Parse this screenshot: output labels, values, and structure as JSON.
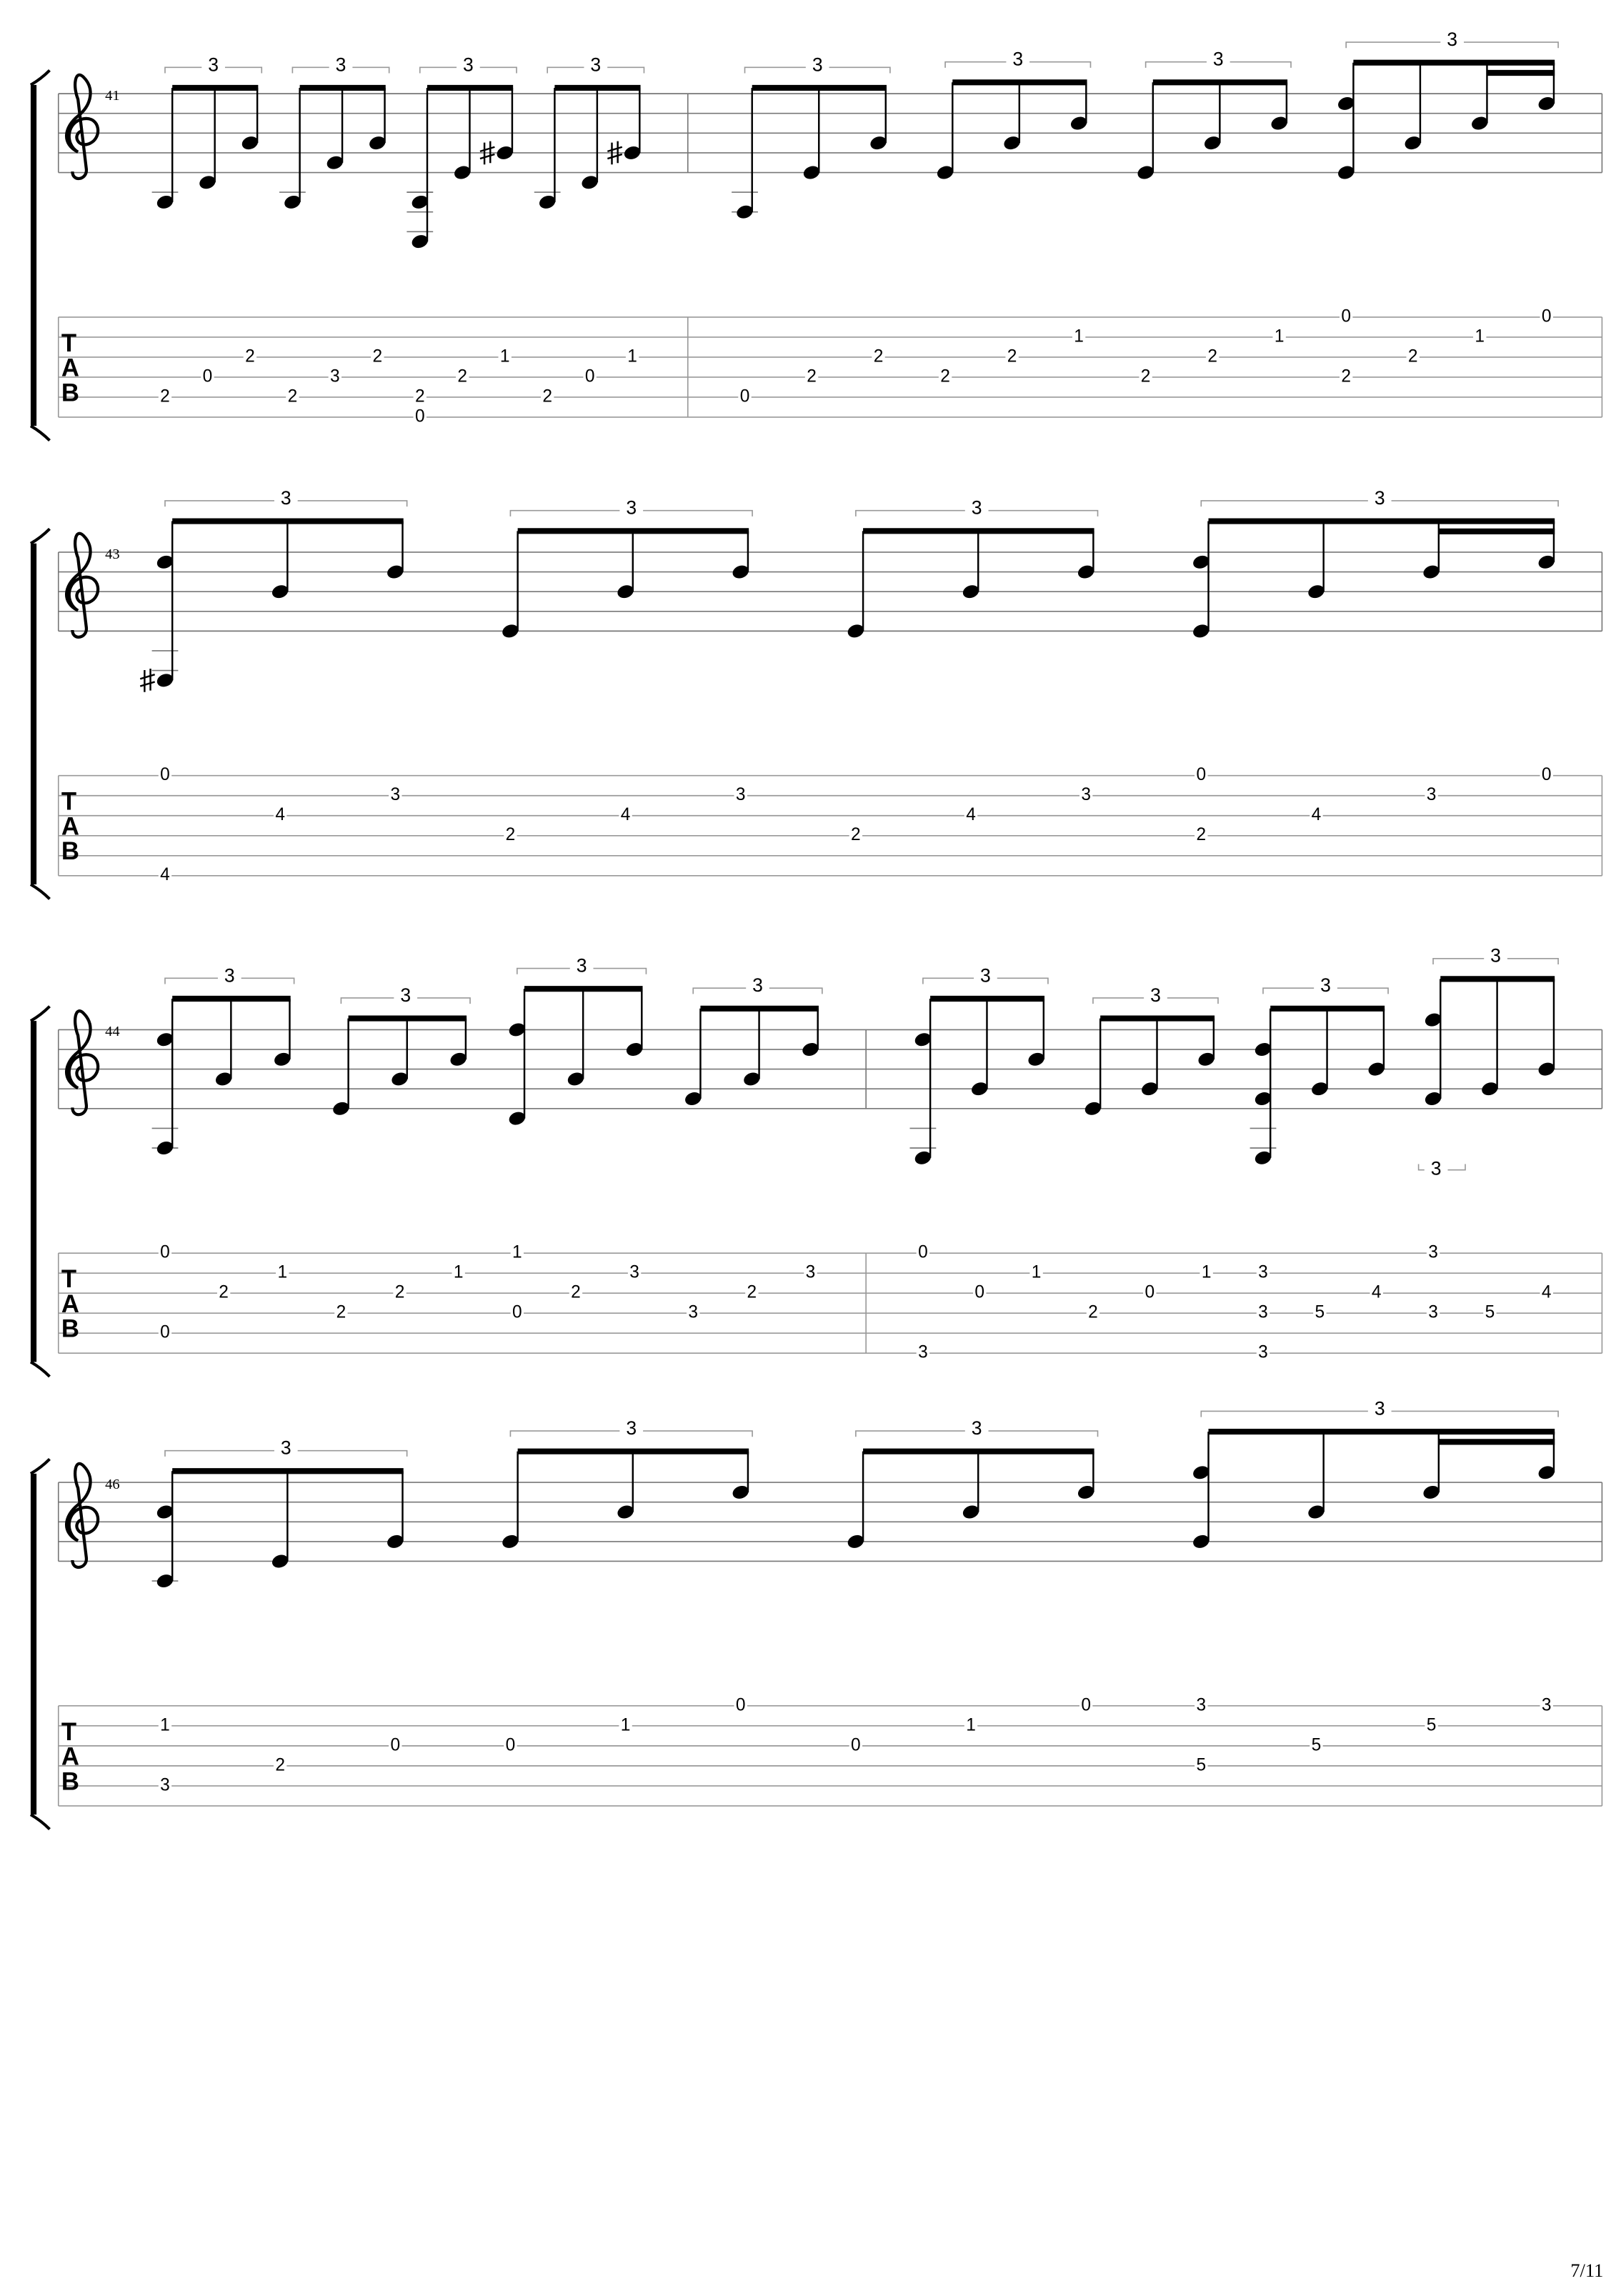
{
  "page_number": "7/11",
  "tab_letters": [
    "T",
    "A",
    "B"
  ],
  "systems": [
    {
      "measures": [
        {
          "number": "41",
          "tuplets": [
            "3",
            "3",
            "3",
            "3"
          ],
          "events": [
            [
              null,
              null,
              null,
              null,
              2,
              null
            ],
            [
              null,
              null,
              null,
              0,
              null,
              null
            ],
            [
              null,
              null,
              2,
              null,
              null,
              null
            ],
            [
              null,
              null,
              null,
              null,
              2,
              null
            ],
            [
              null,
              null,
              null,
              3,
              null,
              null
            ],
            [
              null,
              null,
              2,
              null,
              null,
              null
            ],
            [
              null,
              null,
              null,
              null,
              2,
              0
            ],
            [
              null,
              null,
              null,
              2,
              null,
              null
            ],
            [
              null,
              null,
              1,
              null,
              null,
              null
            ],
            [
              null,
              null,
              null,
              null,
              2,
              null
            ],
            [
              null,
              null,
              null,
              0,
              null,
              null
            ],
            [
              null,
              null,
              1,
              null,
              null,
              null
            ]
          ]
        },
        {
          "tuplets": [
            "3",
            "3",
            "3",
            "3"
          ],
          "events": [
            [
              null,
              null,
              null,
              null,
              0,
              null
            ],
            [
              null,
              null,
              null,
              2,
              null,
              null
            ],
            [
              null,
              null,
              2,
              null,
              null,
              null
            ],
            [
              null,
              null,
              null,
              2,
              null,
              null
            ],
            [
              null,
              null,
              2,
              null,
              null,
              null
            ],
            [
              null,
              1,
              null,
              null,
              null,
              null
            ],
            [
              null,
              null,
              null,
              2,
              null,
              null
            ],
            [
              null,
              null,
              2,
              null,
              null,
              null
            ],
            [
              null,
              1,
              null,
              null,
              null,
              null
            ],
            [
              0,
              null,
              null,
              2,
              null,
              null
            ],
            [
              null,
              null,
              2,
              null,
              null,
              null
            ],
            [
              null,
              1,
              null,
              null,
              null,
              null
            ],
            [
              0,
              null,
              null,
              null,
              null,
              null
            ]
          ]
        }
      ]
    },
    {
      "measures": [
        {
          "number": "43",
          "tuplets": [
            "3",
            "3",
            "3",
            "3"
          ],
          "events": [
            [
              0,
              null,
              null,
              null,
              null,
              4
            ],
            [
              null,
              null,
              4,
              null,
              null,
              null
            ],
            [
              null,
              3,
              null,
              null,
              null,
              null
            ],
            [
              null,
              null,
              null,
              2,
              null,
              null
            ],
            [
              null,
              null,
              4,
              null,
              null,
              null
            ],
            [
              null,
              3,
              null,
              null,
              null,
              null
            ],
            [
              null,
              null,
              null,
              2,
              null,
              null
            ],
            [
              null,
              null,
              4,
              null,
              null,
              null
            ],
            [
              null,
              3,
              null,
              null,
              null,
              null
            ],
            [
              0,
              null,
              null,
              2,
              null,
              null
            ],
            [
              null,
              null,
              4,
              null,
              null,
              null
            ],
            [
              null,
              3,
              null,
              null,
              null,
              null
            ],
            [
              0,
              null,
              null,
              null,
              null,
              null
            ]
          ]
        }
      ]
    },
    {
      "measures": [
        {
          "number": "44",
          "tuplets": [
            "3",
            "3",
            "3",
            "3"
          ],
          "events": [
            [
              0,
              null,
              null,
              null,
              0,
              null
            ],
            [
              null,
              null,
              2,
              null,
              null,
              null
            ],
            [
              null,
              1,
              null,
              null,
              null,
              null
            ],
            [
              null,
              null,
              null,
              2,
              null,
              null
            ],
            [
              null,
              null,
              2,
              null,
              null,
              null
            ],
            [
              null,
              1,
              null,
              null,
              null,
              null
            ],
            [
              1,
              null,
              null,
              0,
              null,
              null
            ],
            [
              null,
              null,
              2,
              null,
              null,
              null
            ],
            [
              null,
              3,
              null,
              null,
              null,
              null
            ],
            [
              null,
              null,
              null,
              3,
              null,
              null
            ],
            [
              null,
              null,
              2,
              null,
              null,
              null
            ],
            [
              null,
              3,
              null,
              null,
              null,
              null
            ]
          ]
        },
        {
          "tuplets": [
            "3",
            "3",
            "3",
            "3"
          ],
          "voice2_tuplets": [
            "3"
          ],
          "events": [
            [
              0,
              null,
              null,
              null,
              null,
              3
            ],
            [
              null,
              null,
              0,
              null,
              null,
              null
            ],
            [
              null,
              1,
              null,
              null,
              null,
              null
            ],
            [
              null,
              null,
              null,
              2,
              null,
              null
            ],
            [
              null,
              null,
              0,
              null,
              null,
              null
            ],
            [
              null,
              1,
              null,
              null,
              null,
              null
            ],
            [
              null,
              3,
              null,
              3,
              null,
              3
            ],
            [
              null,
              null,
              null,
              5,
              null,
              null
            ],
            [
              null,
              null,
              4,
              null,
              null,
              null
            ],
            [
              3,
              null,
              null,
              3,
              null,
              null
            ],
            [
              null,
              null,
              null,
              5,
              null,
              null
            ],
            [
              null,
              null,
              4,
              null,
              null,
              null
            ]
          ]
        }
      ]
    },
    {
      "measures": [
        {
          "number": "46",
          "tuplets": [
            "3",
            "3",
            "3",
            "3"
          ],
          "events": [
            [
              null,
              1,
              null,
              null,
              3,
              null
            ],
            [
              null,
              null,
              null,
              2,
              null,
              null
            ],
            [
              null,
              null,
              0,
              null,
              null,
              null
            ],
            [
              null,
              null,
              0,
              null,
              null,
              null
            ],
            [
              null,
              1,
              null,
              null,
              null,
              null
            ],
            [
              0,
              null,
              null,
              null,
              null,
              null
            ],
            [
              null,
              null,
              0,
              null,
              null,
              null
            ],
            [
              null,
              1,
              null,
              null,
              null,
              null
            ],
            [
              0,
              null,
              null,
              null,
              null,
              null
            ],
            [
              3,
              null,
              null,
              5,
              null,
              null
            ],
            [
              null,
              null,
              5,
              null,
              null,
              null
            ],
            [
              null,
              5,
              null,
              null,
              null,
              null
            ],
            [
              3,
              null,
              null,
              null,
              null,
              null
            ]
          ]
        }
      ]
    }
  ]
}
